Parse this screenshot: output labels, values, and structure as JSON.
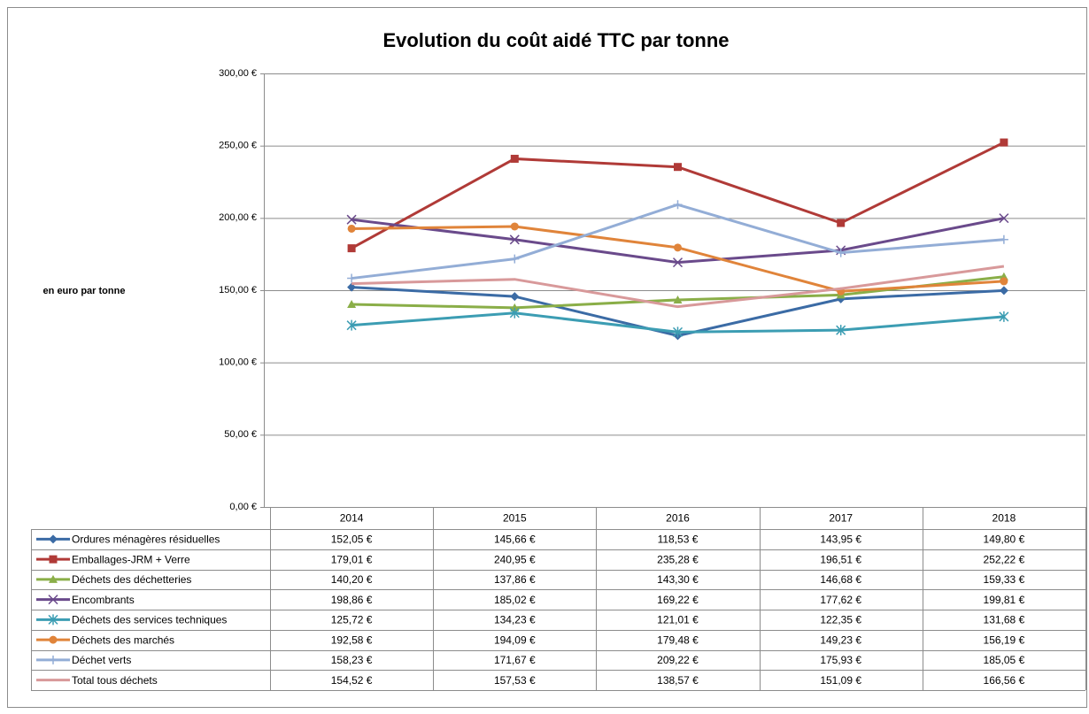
{
  "chart_data": {
    "type": "line",
    "title": "Evolution du coût aidé TTC par tonne",
    "y_label": "en euro par tonne",
    "categories": [
      "2014",
      "2015",
      "2016",
      "2017",
      "2018"
    ],
    "ylim": [
      0,
      300
    ],
    "yticks": [
      {
        "value": 0,
        "label": "0,00 €"
      },
      {
        "value": 50,
        "label": "50,00 €"
      },
      {
        "value": 100,
        "label": "100,00 €"
      },
      {
        "value": 150,
        "label": "150,00 €"
      },
      {
        "value": 200,
        "label": "200,00 €"
      },
      {
        "value": 250,
        "label": "250,00 €"
      },
      {
        "value": 300,
        "label": "300,00 €"
      }
    ],
    "grid": true,
    "series": [
      {
        "name": "Ordures ménagères résiduelles",
        "color": "#3b6ba5",
        "marker": "diamond",
        "values": [
          152.05,
          145.66,
          118.53,
          143.95,
          149.8
        ],
        "value_labels": [
          "152,05 €",
          "145,66 €",
          "118,53 €",
          "143,95 €",
          "149,80 €"
        ]
      },
      {
        "name": "Emballages-JRM + Verre",
        "color": "#b03a37",
        "marker": "square",
        "values": [
          179.01,
          240.95,
          235.28,
          196.51,
          252.22
        ],
        "value_labels": [
          "179,01 €",
          "240,95 €",
          "235,28 €",
          "196,51 €",
          "252,22 €"
        ]
      },
      {
        "name": "Déchets des déchetteries",
        "color": "#8aae48",
        "marker": "triangle",
        "values": [
          140.2,
          137.86,
          143.3,
          146.68,
          159.33
        ],
        "value_labels": [
          "140,20 €",
          "137,86 €",
          "143,30 €",
          "146,68 €",
          "159,33 €"
        ]
      },
      {
        "name": "Encombrants",
        "color": "#6a4a8b",
        "marker": "x",
        "values": [
          198.86,
          185.02,
          169.22,
          177.62,
          199.81
        ],
        "value_labels": [
          "198,86 €",
          "185,02 €",
          "169,22 €",
          "177,62 €",
          "199,81 €"
        ]
      },
      {
        "name": "Déchets des services techniques",
        "color": "#3c9db3",
        "marker": "star",
        "values": [
          125.72,
          134.23,
          121.01,
          122.35,
          131.68
        ],
        "value_labels": [
          "125,72 €",
          "134,23 €",
          "121,01 €",
          "122,35 €",
          "131,68 €"
        ]
      },
      {
        "name": "Déchets des marchés",
        "color": "#e0843a",
        "marker": "circle",
        "values": [
          192.58,
          194.09,
          179.48,
          149.23,
          156.19
        ],
        "value_labels": [
          "192,58 €",
          "194,09 €",
          "179,48 €",
          "149,23 €",
          "156,19 €"
        ]
      },
      {
        "name": "Déchet verts",
        "color": "#93add6",
        "marker": "plus",
        "values": [
          158.23,
          171.67,
          209.22,
          175.93,
          185.05
        ],
        "value_labels": [
          "158,23 €",
          "171,67 €",
          "209,22 €",
          "175,93 €",
          "185,05 €"
        ]
      },
      {
        "name": "Total tous déchets",
        "color": "#d8999a",
        "marker": "none",
        "values": [
          154.52,
          157.53,
          138.57,
          151.09,
          166.56
        ],
        "value_labels": [
          "154,52 €",
          "157,53 €",
          "138,57 €",
          "151,09 €",
          "166,56 €"
        ]
      }
    ]
  }
}
